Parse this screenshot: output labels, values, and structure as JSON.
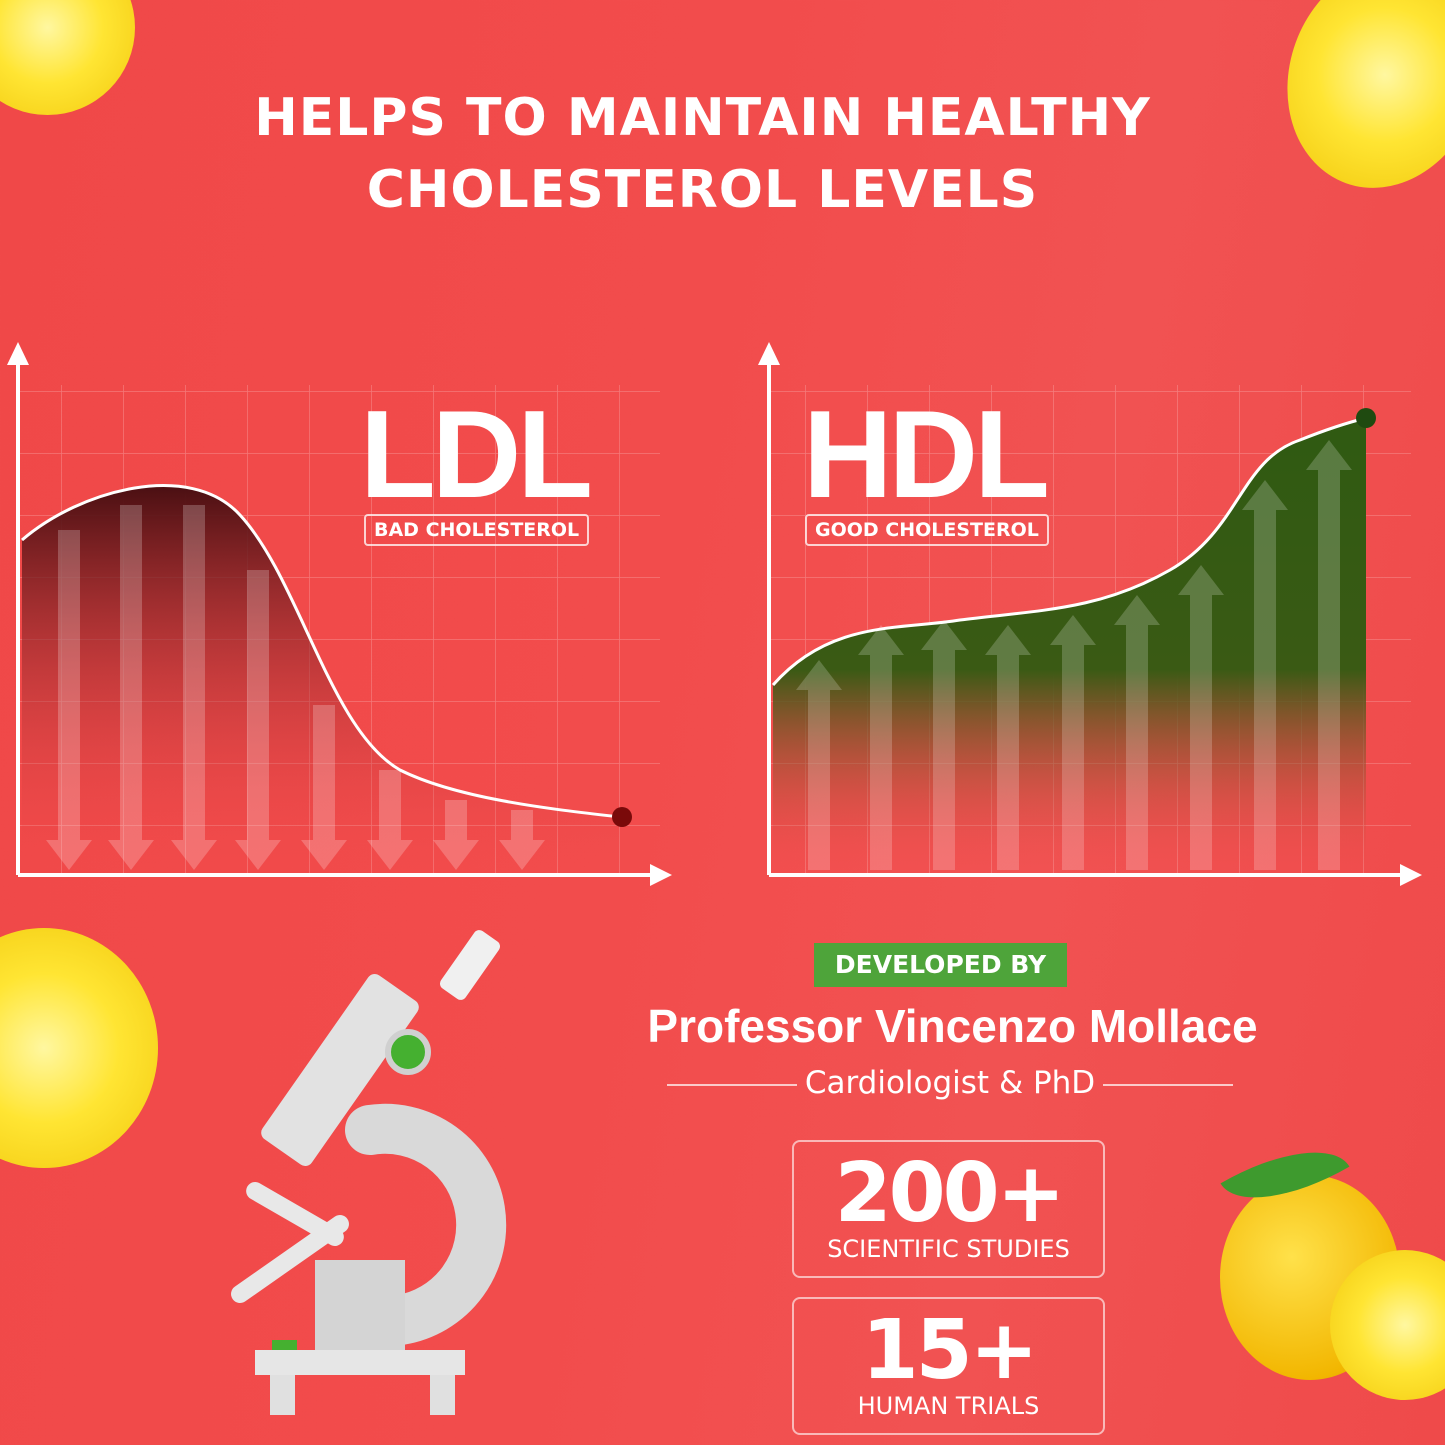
{
  "headline": {
    "line1": "HELPS TO MAINTAIN HEALTHY",
    "line2": "CHOLESTEROL LEVELS"
  },
  "ldl": {
    "title": "LDL",
    "subtitle": "BAD CHOLESTEROL",
    "trend": "decreasing",
    "fill_color": "#4a0f12"
  },
  "hdl": {
    "title": "HDL",
    "subtitle": "GOOD CHOLESTEROL",
    "trend": "increasing",
    "fill_color": "#2f5a12"
  },
  "developer": {
    "badge": "DEVELOPED BY",
    "name": "Professor Vincenzo Mollace",
    "role": "Cardiologist & PhD"
  },
  "stats": [
    {
      "value": "200+",
      "label": "SCIENTIFIC STUDIES"
    },
    {
      "value": "15+",
      "label": "HUMAN TRIALS"
    }
  ],
  "colors": {
    "background": "#f24c4c",
    "accent_green": "#4ea43a",
    "lemon": "#ffe533"
  },
  "icons": [
    "microscope-icon",
    "lemon-slice-icon",
    "lemon-icon",
    "hexagon-pattern"
  ]
}
